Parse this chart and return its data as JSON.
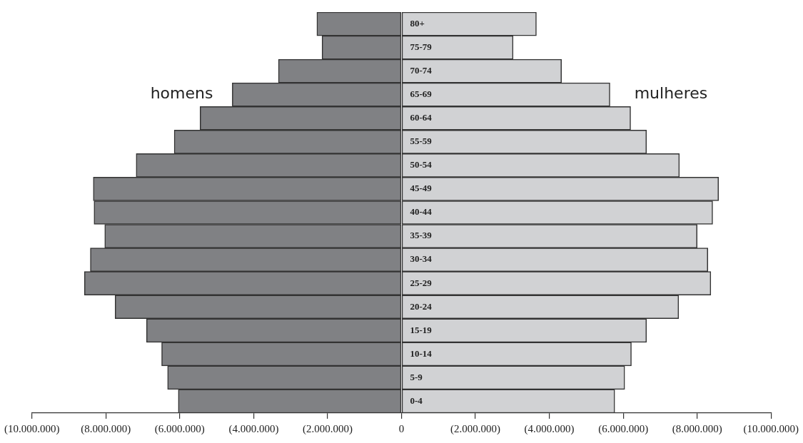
{
  "chart_data": {
    "type": "bar",
    "orientation": "horizontal",
    "stacked": true,
    "categories": [
      "80+",
      "75-79",
      "70-74",
      "65-69",
      "60-64",
      "55-59",
      "50-54",
      "45-49",
      "40-44",
      "35-39",
      "30-34",
      "25-29",
      "20-24",
      "15-19",
      "10-14",
      "5-9",
      "0-4"
    ],
    "series": [
      {
        "name": "homens",
        "color": "#808184",
        "values": [
          -2290000,
          -2150000,
          -3330000,
          -4580000,
          -5450000,
          -6150000,
          -7180000,
          -8340000,
          -8320000,
          -8030000,
          -8420000,
          -8580000,
          -7750000,
          -6900000,
          -6490000,
          -6330000,
          -6040000
        ]
      },
      {
        "name": "mulheres",
        "color": "#d1d2d4",
        "values": [
          3650000,
          3020000,
          4330000,
          5640000,
          6200000,
          6630000,
          7520000,
          8580000,
          8420000,
          8000000,
          8290000,
          8370000,
          7500000,
          6630000,
          6220000,
          6040000,
          5770000
        ]
      }
    ],
    "xlim": [
      -10000000,
      10000000
    ],
    "xticks": [
      {
        "value": -10000000,
        "label": "(10.000.000)"
      },
      {
        "value": -8000000,
        "label": "(8.000.000)"
      },
      {
        "value": -6000000,
        "label": "(6.000.000)"
      },
      {
        "value": -4000000,
        "label": "(4.000.000)"
      },
      {
        "value": -2000000,
        "label": "(2.000.000)"
      },
      0,
      {
        "value": 2000000,
        "label": "(2.000.000)"
      },
      {
        "value": 4000000,
        "label": "(4.000.000)"
      },
      {
        "value": 6000000,
        "label": "(6.000.000)"
      },
      {
        "value": 8000000,
        "label": "(8.000.000)"
      },
      {
        "value": 10000000,
        "label": "(10.000.000)"
      }
    ],
    "grid": false,
    "legend": false
  }
}
